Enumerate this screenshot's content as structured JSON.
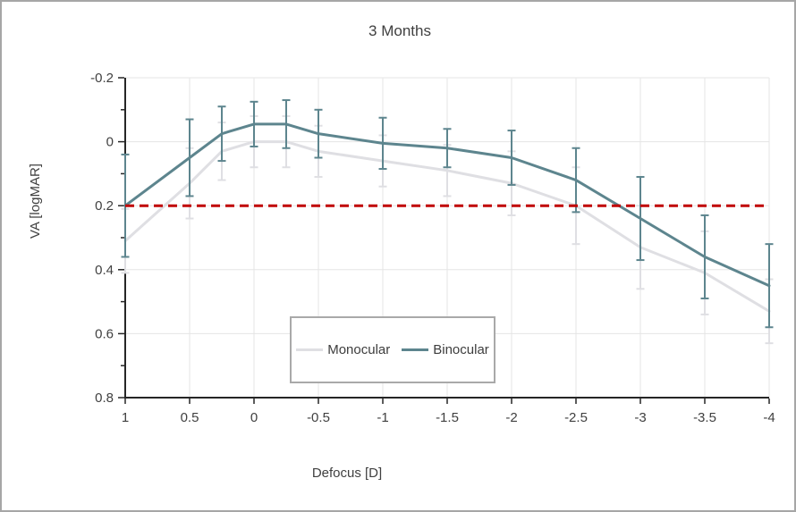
{
  "window": {
    "background_color": "#ffffff",
    "border_color": "#a6a6a6"
  },
  "chart_data": {
    "type": "line",
    "title": "3 Months",
    "xlabel": "Defocus [D]",
    "ylabel": "VA [logMAR]",
    "x": [
      1,
      0.5,
      0.25,
      0,
      -0.25,
      -0.5,
      -1,
      -1.5,
      -2,
      -2.5,
      -3,
      -3.5,
      -4
    ],
    "series": [
      {
        "name": "Monocular",
        "color": "#dfdfe3",
        "values": [
          0.31,
          0.13,
          0.03,
          0.0,
          0.0,
          0.03,
          0.06,
          0.09,
          0.13,
          0.2,
          0.33,
          0.41,
          0.53
        ],
        "errors": [
          0.1,
          0.11,
          0.09,
          0.08,
          0.08,
          0.08,
          0.08,
          0.08,
          0.1,
          0.12,
          0.13,
          0.13,
          0.1
        ]
      },
      {
        "name": "Binocular",
        "color": "#5d858e",
        "values": [
          0.2,
          0.05,
          -0.025,
          -0.055,
          -0.055,
          -0.025,
          0.005,
          0.02,
          0.05,
          0.12,
          0.24,
          0.36,
          0.45
        ],
        "errors": [
          0.16,
          0.12,
          0.085,
          0.07,
          0.075,
          0.075,
          0.08,
          0.06,
          0.085,
          0.1,
          0.13,
          0.13,
          0.13
        ]
      }
    ],
    "reference_line": {
      "y": 0.2,
      "color": "#c00000",
      "style": "dashed"
    },
    "x_axis": {
      "range": [
        1,
        -4
      ],
      "reversed": true,
      "ticks": [
        1,
        0.5,
        0,
        -0.5,
        -1,
        -1.5,
        -2,
        -2.5,
        -3,
        -3.5,
        -4
      ],
      "tick_labels": [
        "1",
        "0.5",
        "0",
        "-0.5",
        "-1",
        "-1.5",
        "-2",
        "-2.5",
        "-3",
        "-3.5",
        "-4"
      ]
    },
    "y_axis": {
      "range": [
        -0.2,
        0.8
      ],
      "inverted": true,
      "ticks": [
        -0.2,
        0,
        0.2,
        0.4,
        0.6,
        0.8
      ],
      "tick_labels": [
        "-0.2",
        "0",
        "0.2",
        "0.4",
        "0.6",
        "0.8"
      ],
      "minor_tick_step": 0.1
    },
    "legend": {
      "position": "bottom-center",
      "entries": [
        "Monocular",
        "Binocular"
      ]
    },
    "grid": {
      "show": true,
      "color": "#e5e5e5"
    },
    "colors": {
      "axis": "#262626",
      "text": "#404040"
    }
  }
}
